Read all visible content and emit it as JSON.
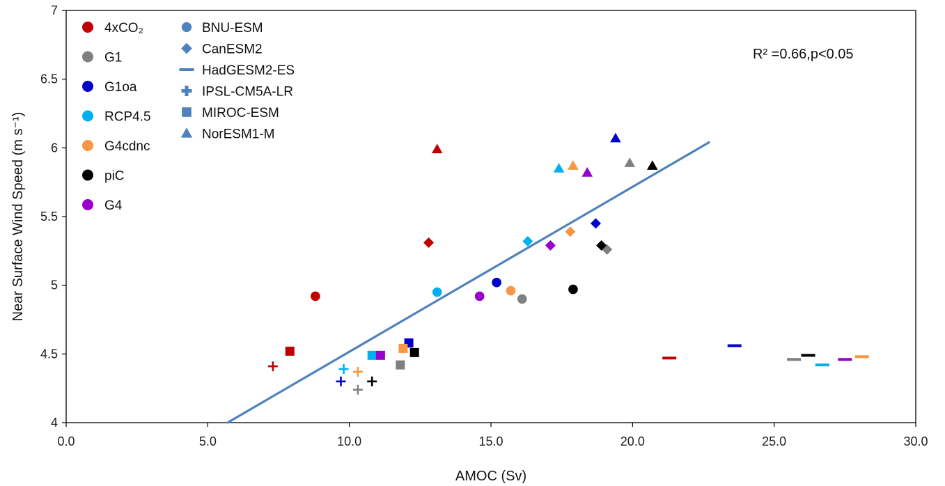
{
  "chart_data": {
    "type": "scatter",
    "xlabel": "AMOC (Sv)",
    "ylabel": "Near Surface Wind Speed (m s⁻¹)",
    "xlim": [
      0,
      30
    ],
    "ylim": [
      4,
      7
    ],
    "xticks": [
      "0.0",
      "5.0",
      "10.0",
      "15.0",
      "20.0",
      "25.0",
      "30.0"
    ],
    "yticks": [
      "4",
      "4.5",
      "5",
      "5.5",
      "6",
      "6.5",
      "7"
    ],
    "grid": false,
    "annotation": "R² =0.66,p<0.05",
    "experiments": [
      {
        "name": "4xCO₂",
        "color": "#c00000"
      },
      {
        "name": "G1",
        "color": "#808080"
      },
      {
        "name": "G1oa",
        "color": "#0000cc"
      },
      {
        "name": "RCP4.5",
        "color": "#00b0f0"
      },
      {
        "name": "G4cdnc",
        "color": "#f79646"
      },
      {
        "name": "piC",
        "color": "#000000"
      },
      {
        "name": "G4",
        "color": "#9900cc"
      }
    ],
    "models": [
      {
        "name": "BNU-ESM",
        "marker": "circle"
      },
      {
        "name": "CanESM2",
        "marker": "diamond"
      },
      {
        "name": "HadGESM2-ES",
        "marker": "dash"
      },
      {
        "name": "IPSL-CM5A-LR",
        "marker": "plus"
      },
      {
        "name": "MIROC-ESM",
        "marker": "square"
      },
      {
        "name": "NorESM1-M",
        "marker": "triangle"
      }
    ],
    "legend_marker_color": "#4f81bd",
    "fit_line": {
      "color": "#4f81bd",
      "x": [
        5.7,
        22.7
      ],
      "y": [
        4.0,
        6.04
      ]
    },
    "points": [
      {
        "x": 8.8,
        "y": 4.92,
        "marker": "circle",
        "exp": "4xCO₂"
      },
      {
        "x": 16.1,
        "y": 4.9,
        "marker": "circle",
        "exp": "G1"
      },
      {
        "x": 15.2,
        "y": 5.02,
        "marker": "circle",
        "exp": "G1oa"
      },
      {
        "x": 13.1,
        "y": 4.95,
        "marker": "circle",
        "exp": "RCP4.5"
      },
      {
        "x": 15.7,
        "y": 4.96,
        "marker": "circle",
        "exp": "G4cdnc"
      },
      {
        "x": 17.9,
        "y": 4.97,
        "marker": "circle",
        "exp": "piC"
      },
      {
        "x": 14.6,
        "y": 4.92,
        "marker": "circle",
        "exp": "G4"
      },
      {
        "x": 12.8,
        "y": 5.31,
        "marker": "diamond",
        "exp": "4xCO₂"
      },
      {
        "x": 19.1,
        "y": 5.26,
        "marker": "diamond",
        "exp": "G1"
      },
      {
        "x": 18.7,
        "y": 5.45,
        "marker": "diamond",
        "exp": "G1oa"
      },
      {
        "x": 16.3,
        "y": 5.32,
        "marker": "diamond",
        "exp": "RCP4.5"
      },
      {
        "x": 17.8,
        "y": 5.39,
        "marker": "diamond",
        "exp": "G4cdnc"
      },
      {
        "x": 18.9,
        "y": 5.29,
        "marker": "diamond",
        "exp": "piC"
      },
      {
        "x": 17.1,
        "y": 5.29,
        "marker": "diamond",
        "exp": "G4"
      },
      {
        "x": 21.3,
        "y": 4.47,
        "marker": "dash",
        "exp": "4xCO₂"
      },
      {
        "x": 25.7,
        "y": 4.46,
        "marker": "dash",
        "exp": "G1"
      },
      {
        "x": 23.6,
        "y": 4.56,
        "marker": "dash",
        "exp": "G1oa"
      },
      {
        "x": 26.7,
        "y": 4.42,
        "marker": "dash",
        "exp": "RCP4.5"
      },
      {
        "x": 28.1,
        "y": 4.48,
        "marker": "dash",
        "exp": "G4cdnc"
      },
      {
        "x": 26.2,
        "y": 4.49,
        "marker": "dash",
        "exp": "piC"
      },
      {
        "x": 27.5,
        "y": 4.46,
        "marker": "dash",
        "exp": "G4"
      },
      {
        "x": 7.3,
        "y": 4.41,
        "marker": "plus",
        "exp": "4xCO₂"
      },
      {
        "x": 10.3,
        "y": 4.24,
        "marker": "plus",
        "exp": "G1"
      },
      {
        "x": 9.7,
        "y": 4.3,
        "marker": "plus",
        "exp": "G1oa"
      },
      {
        "x": 9.8,
        "y": 4.39,
        "marker": "plus",
        "exp": "RCP4.5"
      },
      {
        "x": 10.3,
        "y": 4.37,
        "marker": "plus",
        "exp": "G4cdnc"
      },
      {
        "x": 10.8,
        "y": 4.3,
        "marker": "plus",
        "exp": "piC"
      },
      {
        "x": 7.9,
        "y": 4.52,
        "marker": "square",
        "exp": "4xCO₂"
      },
      {
        "x": 11.8,
        "y": 4.42,
        "marker": "square",
        "exp": "G1"
      },
      {
        "x": 12.1,
        "y": 4.58,
        "marker": "square",
        "exp": "G1oa"
      },
      {
        "x": 10.8,
        "y": 4.49,
        "marker": "square",
        "exp": "RCP4.5"
      },
      {
        "x": 11.9,
        "y": 4.54,
        "marker": "square",
        "exp": "G4cdnc"
      },
      {
        "x": 12.3,
        "y": 4.51,
        "marker": "square",
        "exp": "piC"
      },
      {
        "x": 11.1,
        "y": 4.49,
        "marker": "square",
        "exp": "G4"
      },
      {
        "x": 13.1,
        "y": 5.99,
        "marker": "triangle",
        "exp": "4xCO₂"
      },
      {
        "x": 19.9,
        "y": 5.89,
        "marker": "triangle",
        "exp": "G1"
      },
      {
        "x": 19.4,
        "y": 6.07,
        "marker": "triangle",
        "exp": "G1oa"
      },
      {
        "x": 17.4,
        "y": 5.85,
        "marker": "triangle",
        "exp": "RCP4.5"
      },
      {
        "x": 17.9,
        "y": 5.87,
        "marker": "triangle",
        "exp": "G4cdnc"
      },
      {
        "x": 20.7,
        "y": 5.87,
        "marker": "triangle",
        "exp": "piC"
      },
      {
        "x": 18.4,
        "y": 5.82,
        "marker": "triangle",
        "exp": "G4"
      }
    ]
  }
}
